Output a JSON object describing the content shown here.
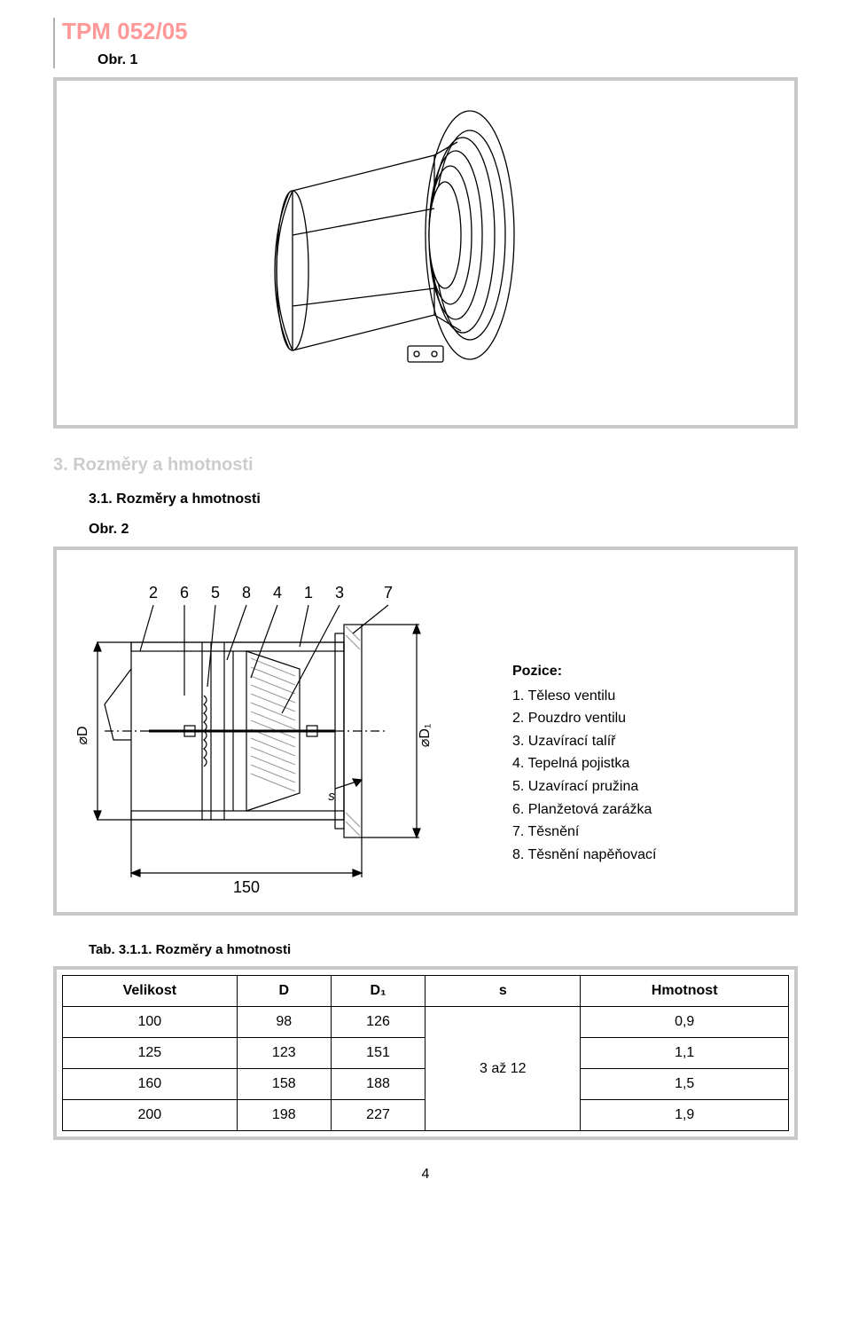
{
  "doc_code": "TPM 052/05",
  "fig1_label": "Obr. 1",
  "section3_title": "3. Rozměry a hmotnosti",
  "section31_title": "3.1.    Rozměry a hmotnosti",
  "fig2_label": "Obr. 2",
  "pozice": {
    "title": "Pozice:",
    "items": [
      "1. Těleso ventilu",
      "2. Pouzdro ventilu",
      "3. Uzavírací talíř",
      "4. Tepelná pojistka",
      "5. Uzavírací pružina",
      "6. Planžetová zarážka",
      "7. Těsnění",
      "8. Těsnění napěňovací"
    ]
  },
  "table_label": "Tab. 3.1.1. Rozměry a hmotnosti",
  "table": {
    "columns": [
      "Velikost",
      "D",
      "D₁",
      "s",
      "Hmotnost"
    ],
    "rows": [
      [
        "100",
        "98",
        "126",
        "0,9"
      ],
      [
        "125",
        "123",
        "151",
        "1,1"
      ],
      [
        "160",
        "158",
        "188",
        "1,5"
      ],
      [
        "200",
        "198",
        "227",
        "1,9"
      ]
    ],
    "s_merged": "3 až 12"
  },
  "diagram2": {
    "callouts": [
      "2",
      "6",
      "5",
      "8",
      "4",
      "1",
      "3",
      "7"
    ],
    "dim_left": "⌀D",
    "dim_right": "⌀D₁",
    "dim_bottom": "150",
    "dim_s": "s"
  },
  "page_number": "4",
  "colors": {
    "title_color": "#ff9999",
    "section_color": "#cccccc",
    "frame_border": "#c8c8c8",
    "line": "#000000",
    "hatch": "#9c9c9c"
  }
}
